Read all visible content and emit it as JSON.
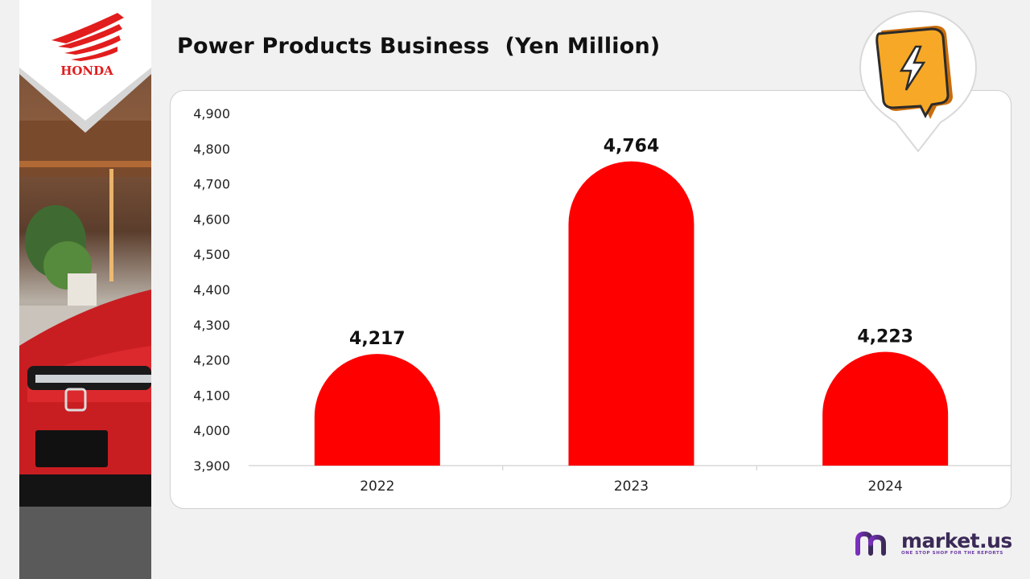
{
  "header": {
    "title": "Power Products Business  (Yen Million)"
  },
  "logo": {
    "brand": "HONDA"
  },
  "footer": {
    "brand_name": "market.us",
    "tagline": "ONE STOP SHOP FOR THE REPORTS"
  },
  "colors": {
    "bar": "#ff0000",
    "logo_red": "#e21d1d",
    "icon_yellow": "#f7a826",
    "brand_purple": "#6b3aa6"
  },
  "icons": {
    "corner": "lightning-chat-icon"
  },
  "chart_data": {
    "type": "bar",
    "title": "Power Products Business  (Yen Million)",
    "categories": [
      "2022",
      "2023",
      "2024"
    ],
    "values": [
      4217,
      4764,
      4223
    ],
    "value_labels": [
      "4,217",
      "4,764",
      "4,223"
    ],
    "ylim": [
      3900,
      4900
    ],
    "yticks": [
      "3,900",
      "4,000",
      "4,100",
      "4,200",
      "4,300",
      "4,400",
      "4,500",
      "4,600",
      "4,700",
      "4,800",
      "4,900"
    ],
    "xlabel": "",
    "ylabel": "",
    "grid": false,
    "legend": "none"
  }
}
